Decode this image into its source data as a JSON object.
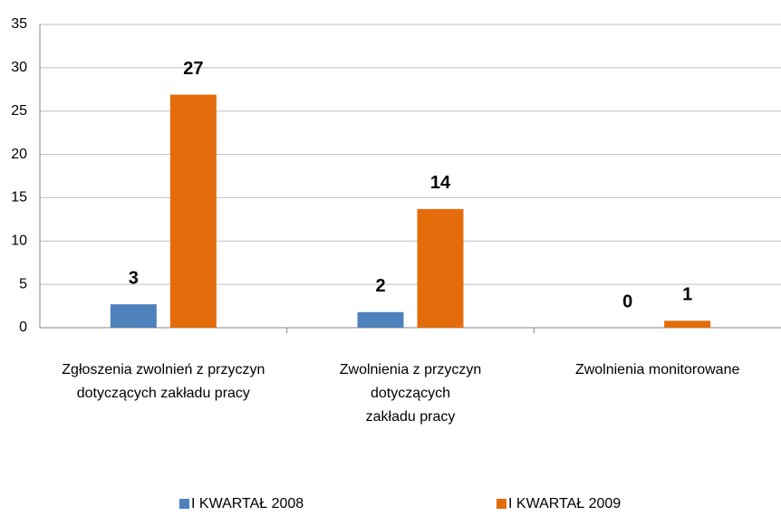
{
  "chart_data": {
    "type": "bar",
    "categories": [
      "Zgłoszenia zwolnień z przyczyn\ndotyczących zakładu pracy",
      "Zwolnienia z przyczyn\ndotyczących\nzakładu pracy",
      "Zwolnienia monitorowane"
    ],
    "series": [
      {
        "name": "I KWARTAŁ 2008",
        "color": "#4f81bd",
        "values": [
          2.7,
          1.8,
          0
        ],
        "value_labels": [
          "3",
          "2",
          "0"
        ]
      },
      {
        "name": "I KWARTAŁ 2009",
        "color": "#e46c0a",
        "values": [
          26.9,
          13.7,
          0.8
        ],
        "value_labels": [
          "27",
          "14",
          "1"
        ]
      }
    ],
    "ylim": [
      0,
      35
    ],
    "yticks": [
      0,
      5,
      10,
      15,
      20,
      25,
      30,
      35
    ],
    "grid": true,
    "legend": "bottom"
  }
}
